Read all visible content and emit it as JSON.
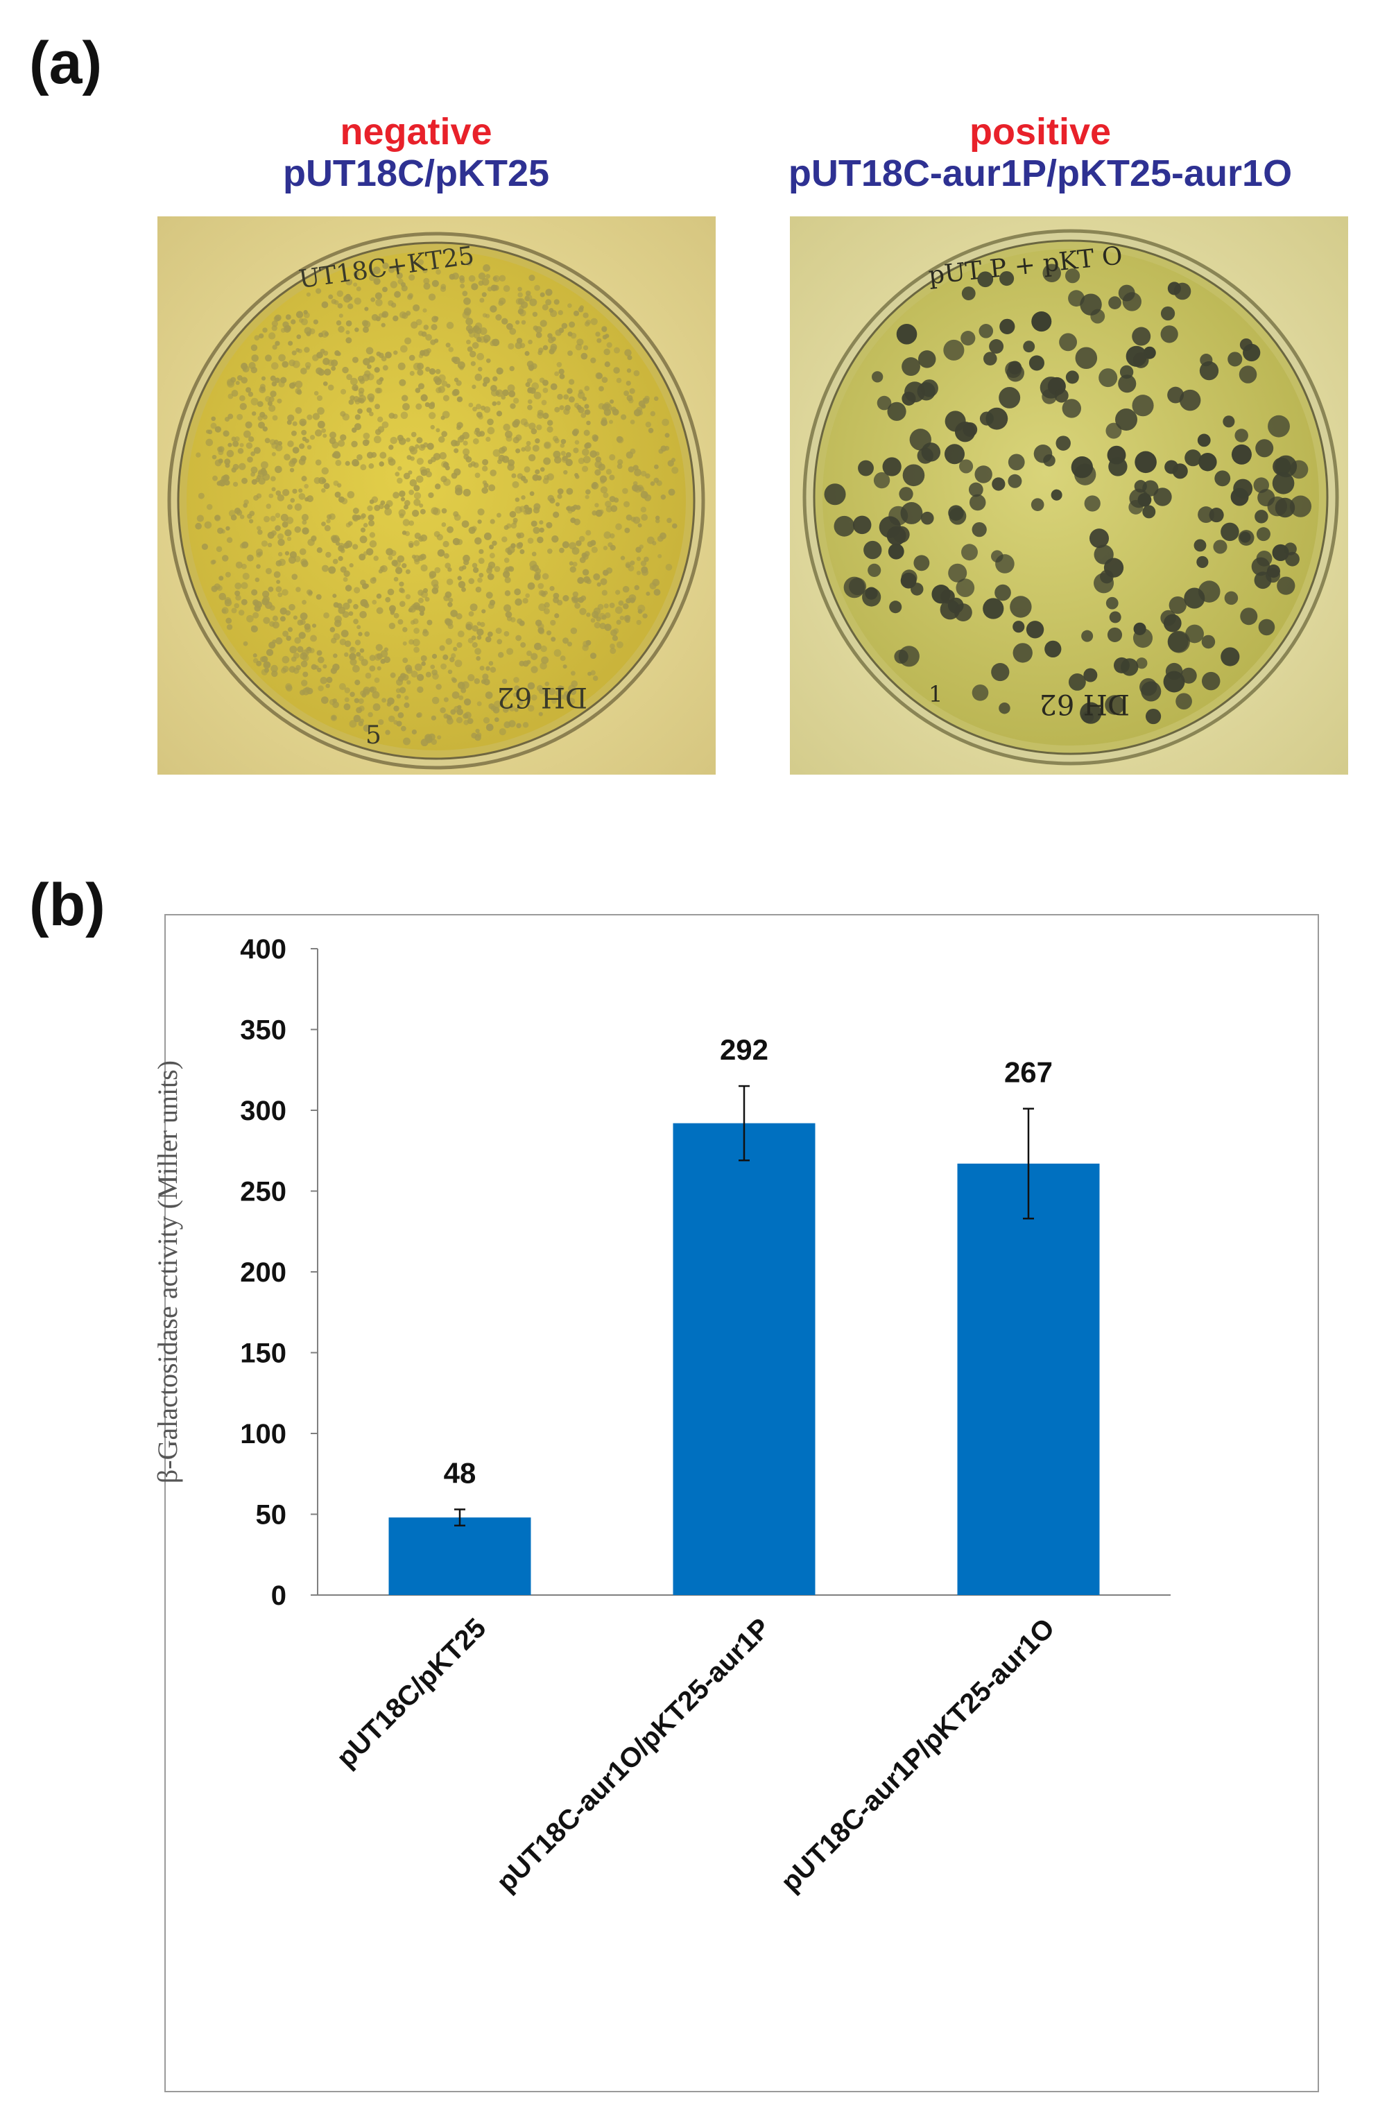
{
  "panel_a": {
    "label": "(a)",
    "plates": [
      {
        "status": "negative",
        "construct": "pUT18C/pKT25",
        "plate_text": "UT18C+KT25",
        "plate_text_2": "DH 62",
        "plate_text_3": "5"
      },
      {
        "status": "positive",
        "construct": "pUT18C-aur1P/pKT25-aur1O",
        "plate_text": "pUT P + pKT O",
        "plate_text_2": "DH 62",
        "plate_text_3": "1"
      }
    ]
  },
  "panel_b": {
    "label": "(b)"
  },
  "colors": {
    "bar": "#0070c0",
    "negative": "#e8212a",
    "construct": "#2e3192",
    "agar": "#c9b53a"
  },
  "chart_data": {
    "type": "bar",
    "title": "",
    "ylabel": "β-Galactosidase activity (Miller units)",
    "xlabel": "",
    "ylim": [
      0,
      400
    ],
    "yticks": [
      "0",
      "50",
      "100",
      "150",
      "200",
      "250",
      "300",
      "350",
      "400"
    ],
    "categories": [
      "pUT18C/pKT25",
      "pUT18C-aur1O/pKT25-aur1P",
      "pUT18C-aur1P/pKT25-aur1O"
    ],
    "values": [
      48,
      292,
      267
    ],
    "data_labels": [
      "48",
      "292",
      "267"
    ],
    "error_low": [
      43,
      269,
      233
    ],
    "error_high": [
      53,
      315,
      301
    ],
    "grid": false,
    "legend": "none"
  }
}
